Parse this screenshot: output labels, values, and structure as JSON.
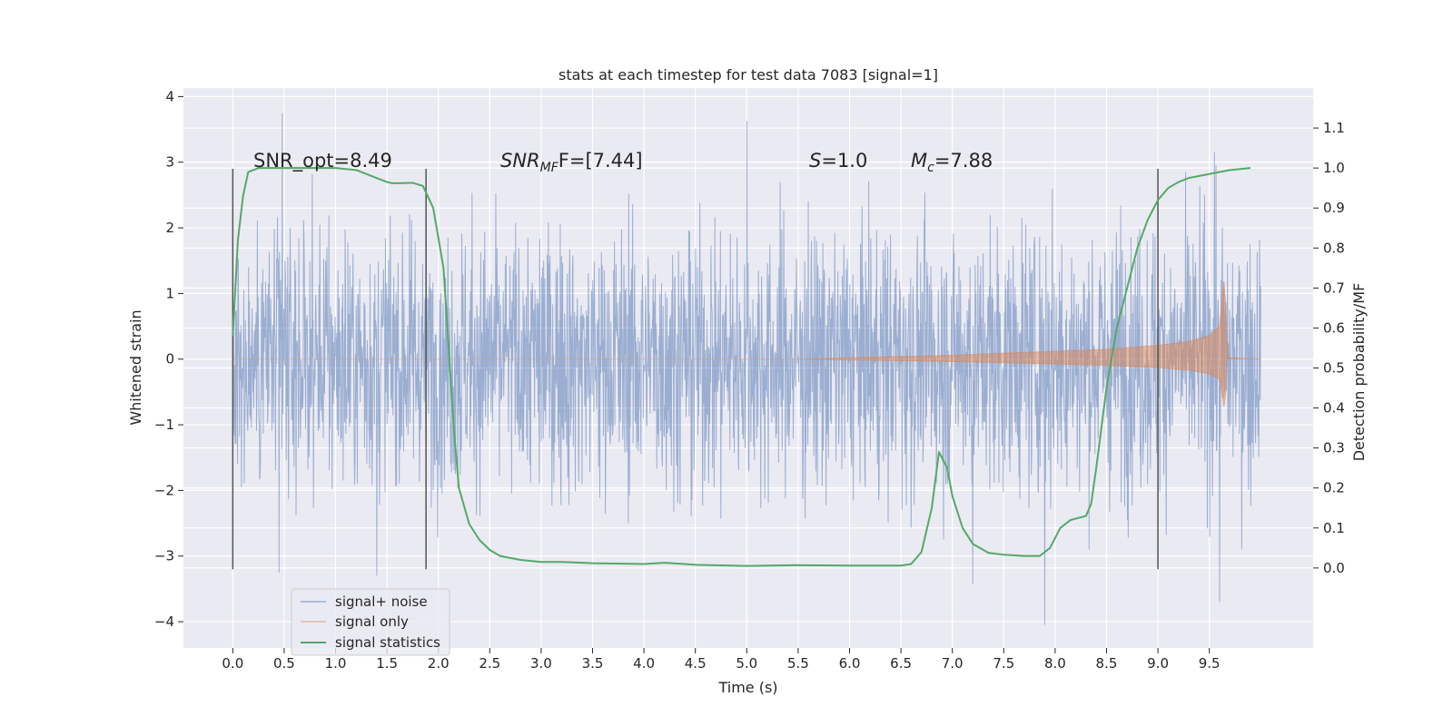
{
  "chart_data": {
    "type": "line",
    "title": "stats at each timestep for test data 7083 [signal=1]",
    "xlabel": "Time (s)",
    "ylabel": "Whitened strain",
    "ylabel_right": "Detection probability/MF",
    "xlim": [
      -0.48,
      10.51
    ],
    "ylim": [
      -4.4,
      4.13
    ],
    "ylim_right": [
      -0.2,
      1.2
    ],
    "x_ticks": [
      0.0,
      0.5,
      1.0,
      1.5,
      2.0,
      2.5,
      3.0,
      3.5,
      4.0,
      4.5,
      5.0,
      5.5,
      6.0,
      6.5,
      7.0,
      7.5,
      8.0,
      8.5,
      9.0,
      9.5
    ],
    "x_tick_labels": [
      "0.0",
      "0.5",
      "1.0",
      "1.5",
      "2.0",
      "2.5",
      "3.0",
      "3.5",
      "4.0",
      "4.5",
      "5.0",
      "5.5",
      "6.0",
      "6.5",
      "7.0",
      "7.5",
      "8.0",
      "8.5",
      "9.0",
      "9.5"
    ],
    "y_ticks": [
      -4,
      -3,
      -2,
      -1,
      0,
      1,
      2,
      3,
      4
    ],
    "y_tick_labels": [
      "−4",
      "−3",
      "−2",
      "−1",
      "0",
      "1",
      "2",
      "3",
      "4"
    ],
    "y_ticks_right": [
      0.0,
      0.1,
      0.2,
      0.3,
      0.4,
      0.5,
      0.6,
      0.7,
      0.8,
      0.9,
      1.0,
      1.1
    ],
    "y_tick_labels_right": [
      "0.0",
      "0.1",
      "0.2",
      "0.3",
      "0.4",
      "0.5",
      "0.6",
      "0.7",
      "0.8",
      "0.9",
      "1.0",
      "1.1"
    ],
    "grid": true,
    "legend_position": "lower-left",
    "legend": [
      {
        "label": "signal+ noise",
        "color": "#4c72b0"
      },
      {
        "label": "signal only",
        "color": "#dd8452"
      },
      {
        "label": "signal statistics",
        "color": "#55a868"
      }
    ],
    "annotations": {
      "snr_opt": "SNR_opt=8.49",
      "snr_mf_main": "SNR",
      "snr_mf_sub": "MF",
      "snr_mf_rest": "F=[7.44]",
      "s_main": "S",
      "s_rest": "=1.0",
      "mc_main": "M",
      "mc_sub": "c",
      "mc_rest": "=7.88"
    },
    "vertical_lines_x": [
      0.0,
      1.88,
      9.0
    ],
    "vertical_lines_y": [
      -3.2,
      2.9
    ],
    "colors": {
      "noise": "#4c72b0",
      "signal": "#dd8452",
      "statistics": "#55a868",
      "background": "#eaeaf2",
      "vlines": "#555555"
    },
    "series": [
      {
        "name": "signal+ noise",
        "x_range": [
          0.0,
          10.0
        ],
        "amplitude_typical": 1.0,
        "extremes": [
          {
            "x": 0.48,
            "y": 3.75
          },
          {
            "x": 0.45,
            "y": -3.25
          },
          {
            "x": 1.4,
            "y": -3.3
          },
          {
            "x": 5.0,
            "y": 3.63
          },
          {
            "x": 7.2,
            "y": -3.42
          },
          {
            "x": 7.9,
            "y": -4.05
          },
          {
            "x": 9.6,
            "y": -3.7
          },
          {
            "x": 9.55,
            "y": 3.15
          }
        ]
      },
      {
        "name": "signal only",
        "x": [
          0.0,
          5.5,
          6.0,
          6.5,
          7.0,
          7.5,
          8.0,
          8.5,
          9.0,
          9.3,
          9.5,
          9.6,
          9.65,
          9.66,
          9.68,
          10.0
        ],
        "envelope": [
          0.0,
          0.0,
          0.02,
          0.04,
          0.06,
          0.09,
          0.12,
          0.15,
          0.21,
          0.27,
          0.36,
          0.5,
          1.3,
          0.7,
          0.02,
          0.0
        ]
      },
      {
        "name": "signal statistics",
        "x": [
          0.0,
          0.05,
          0.1,
          0.15,
          0.25,
          0.5,
          1.0,
          1.2,
          1.4,
          1.5,
          1.55,
          1.6,
          1.75,
          1.85,
          1.95,
          2.05,
          2.1,
          2.15,
          2.2,
          2.3,
          2.4,
          2.5,
          2.6,
          2.8,
          3.0,
          3.2,
          3.5,
          4.0,
          4.2,
          4.5,
          5.0,
          5.5,
          6.0,
          6.5,
          6.6,
          6.7,
          6.8,
          6.87,
          6.95,
          7.0,
          7.1,
          7.2,
          7.35,
          7.5,
          7.7,
          7.85,
          7.95,
          8.05,
          8.15,
          8.3,
          8.35,
          8.4,
          8.5,
          8.6,
          8.7,
          8.8,
          8.9,
          9.0,
          9.1,
          9.2,
          9.3,
          9.5,
          9.7,
          9.9
        ],
        "values": [
          0.58,
          0.82,
          0.93,
          0.99,
          1.0,
          1.0,
          1.0,
          0.995,
          0.975,
          0.965,
          0.962,
          0.962,
          0.963,
          0.955,
          0.9,
          0.75,
          0.55,
          0.35,
          0.2,
          0.11,
          0.07,
          0.045,
          0.03,
          0.02,
          0.015,
          0.015,
          0.012,
          0.01,
          0.013,
          0.008,
          0.005,
          0.007,
          0.006,
          0.006,
          0.01,
          0.04,
          0.15,
          0.29,
          0.25,
          0.18,
          0.1,
          0.06,
          0.038,
          0.033,
          0.03,
          0.03,
          0.05,
          0.1,
          0.12,
          0.13,
          0.16,
          0.25,
          0.45,
          0.6,
          0.7,
          0.8,
          0.87,
          0.92,
          0.95,
          0.965,
          0.975,
          0.985,
          0.995,
          1.0
        ]
      }
    ]
  }
}
